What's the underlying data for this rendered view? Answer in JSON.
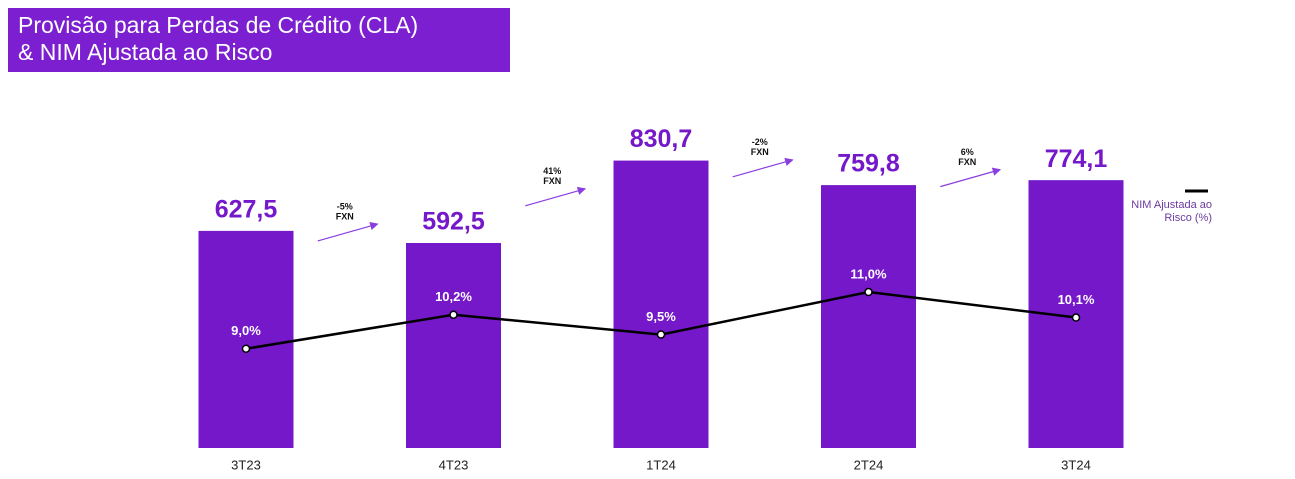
{
  "chart_data": {
    "type": "bar",
    "title": "Provisão para Perdas de Crédito (CLA)\n& NIM Ajustada ao Risco",
    "categories": [
      "3T23",
      "4T23",
      "1T24",
      "2T24",
      "3T24"
    ],
    "series": [
      {
        "type": "bar",
        "color": "#7418c9",
        "values": [
          627.5,
          592.5,
          830.7,
          759.8,
          774.1
        ],
        "value_labels": [
          "627,5",
          "592,5",
          "830,7",
          "759,8",
          "774,1"
        ]
      },
      {
        "type": "line",
        "name": "NIM Ajustada ao Risco (%)",
        "axis": "y2",
        "color": "#000000",
        "values": [
          9.0,
          10.2,
          9.5,
          11.0,
          10.1
        ],
        "value_labels": [
          "9,0%",
          "10,2%",
          "9,5%",
          "11,0%",
          "10,1%"
        ]
      }
    ],
    "ylim": [
      0,
      1000
    ],
    "y2lim": [
      5.5,
      17.7
    ],
    "annotations": [
      {
        "change": "-5%",
        "label": "FXN"
      },
      {
        "change": "41%",
        "label": "FXN"
      },
      {
        "change": "-2%",
        "label": "FXN"
      },
      {
        "change": "6%",
        "label": "FXN"
      }
    ],
    "legend": "right"
  }
}
